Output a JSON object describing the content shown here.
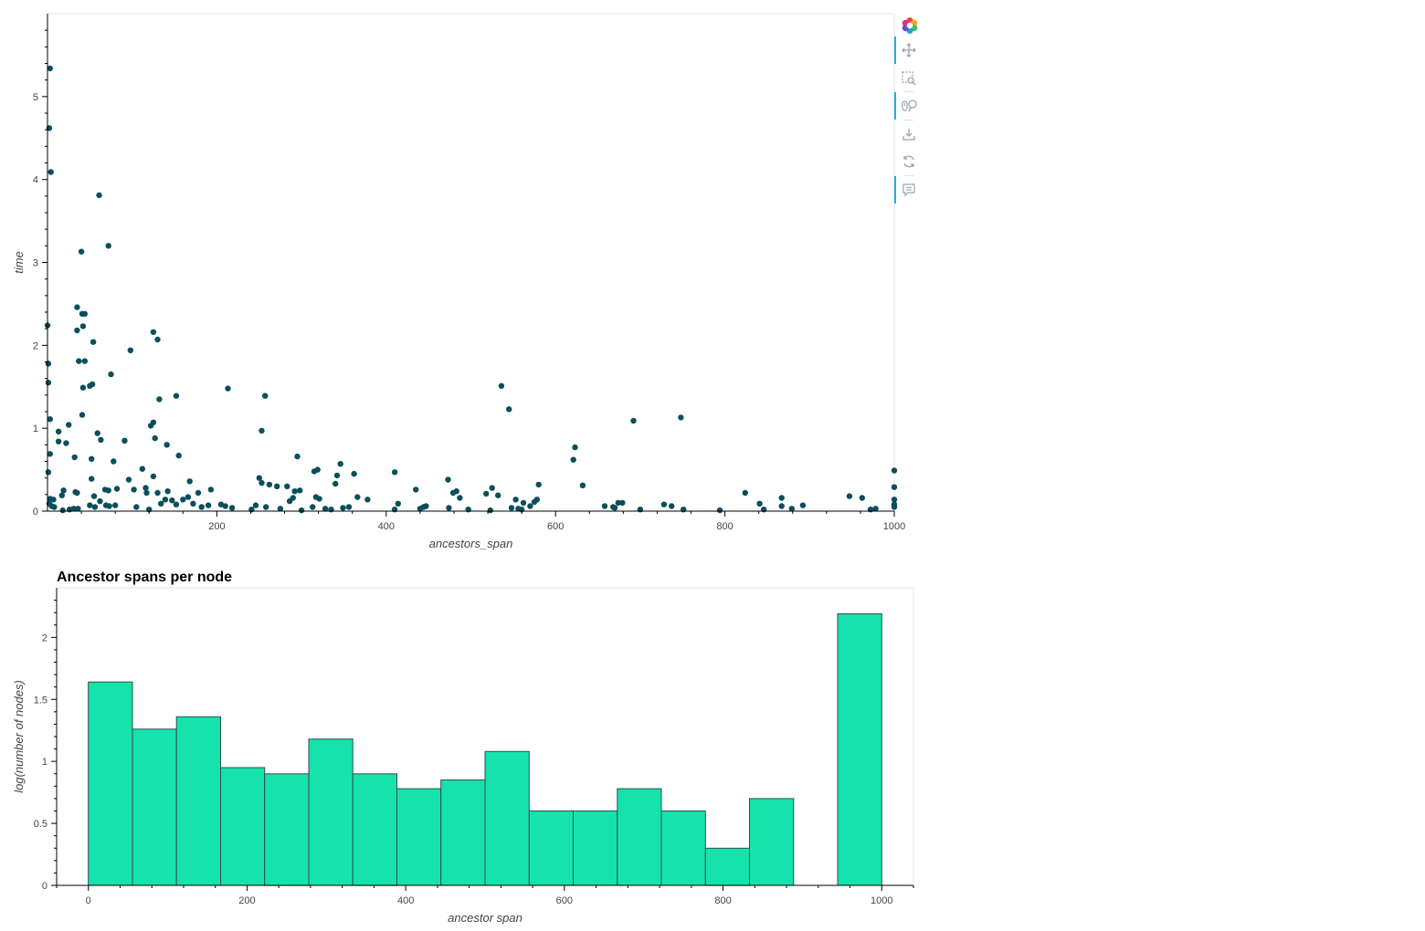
{
  "toolbar": {
    "tools": [
      {
        "icon": "bokeh-logo-icon",
        "active": false
      },
      {
        "icon": "pan-icon",
        "active": true
      },
      {
        "icon": "box-zoom-icon",
        "active": false
      },
      {
        "icon": "wheel-zoom-icon",
        "active": true
      },
      {
        "icon": "save-icon",
        "active": false
      },
      {
        "icon": "reset-icon",
        "active": false
      },
      {
        "icon": "hover-icon",
        "active": true
      }
    ]
  },
  "chart_data": [
    {
      "type": "scatter",
      "title": "",
      "xlabel": "ancestors_span",
      "ylabel": "time",
      "xlim": [
        0,
        1000
      ],
      "ylim": [
        0,
        6
      ],
      "x_ticks": [
        200,
        400,
        600,
        800,
        1000
      ],
      "y_ticks": [
        0,
        1,
        2,
        3,
        4,
        5
      ],
      "grid": false,
      "marker_color": "#0b4f5c",
      "points": [
        [
          3,
          5.34
        ],
        [
          2,
          4.62
        ],
        [
          4,
          4.09
        ],
        [
          61,
          3.81
        ],
        [
          40,
          3.13
        ],
        [
          72,
          3.2
        ],
        [
          0,
          2.24
        ],
        [
          35,
          2.46
        ],
        [
          41,
          2.38
        ],
        [
          44,
          2.38
        ],
        [
          42,
          2.23
        ],
        [
          35,
          2.18
        ],
        [
          54,
          2.04
        ],
        [
          125,
          2.16
        ],
        [
          130,
          2.07
        ],
        [
          98,
          1.94
        ],
        [
          1,
          1.78
        ],
        [
          37,
          1.81
        ],
        [
          44,
          1.81
        ],
        [
          75,
          1.65
        ],
        [
          1,
          1.55
        ],
        [
          42,
          1.49
        ],
        [
          50,
          1.51
        ],
        [
          53,
          1.53
        ],
        [
          132,
          1.35
        ],
        [
          152,
          1.39
        ],
        [
          213,
          1.48
        ],
        [
          257,
          1.39
        ],
        [
          536,
          1.51
        ],
        [
          545,
          1.23
        ],
        [
          748,
          1.13
        ],
        [
          692,
          1.09
        ],
        [
          3,
          1.11
        ],
        [
          41,
          1.16
        ],
        [
          13,
          0.96
        ],
        [
          25,
          1.04
        ],
        [
          122,
          1.03
        ],
        [
          125,
          1.07
        ],
        [
          253,
          0.97
        ],
        [
          59,
          0.94
        ],
        [
          13,
          0.84
        ],
        [
          22,
          0.82
        ],
        [
          63,
          0.86
        ],
        [
          91,
          0.85
        ],
        [
          127,
          0.88
        ],
        [
          141,
          0.8
        ],
        [
          32,
          0.65
        ],
        [
          52,
          0.63
        ],
        [
          155,
          0.67
        ],
        [
          295,
          0.66
        ],
        [
          78,
          0.6
        ],
        [
          623,
          0.77
        ],
        [
          621,
          0.62
        ],
        [
          3,
          0.69
        ],
        [
          1,
          0.47
        ],
        [
          112,
          0.51
        ],
        [
          125,
          0.42
        ],
        [
          52,
          0.39
        ],
        [
          96,
          0.38
        ],
        [
          168,
          0.36
        ],
        [
          250,
          0.4
        ],
        [
          253,
          0.34
        ],
        [
          262,
          0.32
        ],
        [
          315,
          0.48
        ],
        [
          319,
          0.5
        ],
        [
          342,
          0.43
        ],
        [
          346,
          0.57
        ],
        [
          362,
          0.45
        ],
        [
          410,
          0.47
        ],
        [
          473,
          0.38
        ],
        [
          525,
          0.28
        ],
        [
          580,
          0.32
        ],
        [
          632,
          0.31
        ],
        [
          340,
          0.33
        ],
        [
          3,
          0.15
        ],
        [
          7,
          0.14
        ],
        [
          17,
          0.19
        ],
        [
          19,
          0.25
        ],
        [
          33,
          0.23
        ],
        [
          35,
          0.22
        ],
        [
          55,
          0.18
        ],
        [
          68,
          0.26
        ],
        [
          72,
          0.25
        ],
        [
          82,
          0.27
        ],
        [
          102,
          0.26
        ],
        [
          116,
          0.28
        ],
        [
          117,
          0.22
        ],
        [
          130,
          0.22
        ],
        [
          142,
          0.24
        ],
        [
          178,
          0.22
        ],
        [
          193,
          0.26
        ],
        [
          271,
          0.3
        ],
        [
          283,
          0.3
        ],
        [
          292,
          0.24
        ],
        [
          298,
          0.25
        ],
        [
          435,
          0.26
        ],
        [
          479,
          0.22
        ],
        [
          483,
          0.24
        ],
        [
          518,
          0.21
        ],
        [
          532,
          0.19
        ],
        [
          824,
          0.22
        ],
        [
          947,
          0.18
        ],
        [
          962,
          0.16
        ],
        [
          867,
          0.16
        ],
        [
          366,
          0.17
        ],
        [
          378,
          0.14
        ],
        [
          317,
          0.17
        ],
        [
          321,
          0.15
        ],
        [
          290,
          0.16
        ],
        [
          286,
          0.12
        ],
        [
          487,
          0.16
        ],
        [
          553,
          0.14
        ],
        [
          562,
          0.1
        ],
        [
          575,
          0.11
        ],
        [
          578,
          0.14
        ],
        [
          674,
          0.1
        ],
        [
          679,
          0.1
        ],
        [
          2,
          0.09
        ],
        [
          5,
          0.06
        ],
        [
          8,
          0.05
        ],
        [
          18,
          0.01
        ],
        [
          26,
          0.02
        ],
        [
          31,
          0.03
        ],
        [
          36,
          0.03
        ],
        [
          50,
          0.07
        ],
        [
          56,
          0.05
        ],
        [
          62,
          0.12
        ],
        [
          69,
          0.07
        ],
        [
          73,
          0.06
        ],
        [
          80,
          0.07
        ],
        [
          105,
          0.05
        ],
        [
          120,
          0.02
        ],
        [
          134,
          0.09
        ],
        [
          139,
          0.14
        ],
        [
          147,
          0.13
        ],
        [
          152,
          0.08
        ],
        [
          160,
          0.14
        ],
        [
          166,
          0.17
        ],
        [
          172,
          0.09
        ],
        [
          182,
          0.05
        ],
        [
          190,
          0.07
        ],
        [
          205,
          0.08
        ],
        [
          210,
          0.06
        ],
        [
          218,
          0.04
        ],
        [
          241,
          0.02
        ],
        [
          246,
          0.07
        ],
        [
          258,
          0.05
        ],
        [
          275,
          0.03
        ],
        [
          300,
          0.01
        ],
        [
          313,
          0.05
        ],
        [
          328,
          0.03
        ],
        [
          335,
          0.02
        ],
        [
          349,
          0.04
        ],
        [
          356,
          0.05
        ],
        [
          410,
          0.02
        ],
        [
          414,
          0.09
        ],
        [
          440,
          0.03
        ],
        [
          444,
          0.05
        ],
        [
          447,
          0.06
        ],
        [
          474,
          0.04
        ],
        [
          497,
          0.02
        ],
        [
          523,
          0.01
        ],
        [
          548,
          0.04
        ],
        [
          556,
          0.03
        ],
        [
          560,
          0.02
        ],
        [
          570,
          0.06
        ],
        [
          658,
          0.06
        ],
        [
          668,
          0.05
        ],
        [
          670,
          0.04
        ],
        [
          700,
          0.02
        ],
        [
          728,
          0.08
        ],
        [
          737,
          0.06
        ],
        [
          751,
          0.02
        ],
        [
          794,
          0.01
        ],
        [
          841,
          0.09
        ],
        [
          846,
          0.02
        ],
        [
          867,
          0.06
        ],
        [
          879,
          0.03
        ],
        [
          892,
          0.07
        ],
        [
          972,
          0.02
        ],
        [
          978,
          0.03
        ],
        [
          1000,
          0.49
        ],
        [
          1000,
          0.29
        ],
        [
          1000,
          0.14
        ],
        [
          1000,
          0.08
        ],
        [
          1000,
          0.05
        ]
      ]
    },
    {
      "type": "bar",
      "title": "Ancestor spans per node",
      "xlabel": "ancestor span",
      "ylabel": "log(number of nodes)",
      "xlim": [
        -40,
        1040
      ],
      "ylim": [
        0,
        2.4
      ],
      "x_ticks": [
        0,
        200,
        400,
        600,
        800,
        1000
      ],
      "y_ticks": [
        0,
        0.5,
        1,
        1.5,
        2
      ],
      "y_tick_labels": [
        "0",
        "0.5",
        "1",
        "1.5",
        "2"
      ],
      "grid": false,
      "fill_color": "#16e3ab",
      "edge_color": "#2f4f4f",
      "bins": [
        {
          "left": 0,
          "right": 55.6,
          "value": 1.64
        },
        {
          "left": 55.6,
          "right": 111.1,
          "value": 1.26
        },
        {
          "left": 111.1,
          "right": 166.7,
          "value": 1.36
        },
        {
          "left": 166.7,
          "right": 222.2,
          "value": 0.95
        },
        {
          "left": 222.2,
          "right": 277.8,
          "value": 0.9
        },
        {
          "left": 277.8,
          "right": 333.3,
          "value": 1.18
        },
        {
          "left": 333.3,
          "right": 388.9,
          "value": 0.9
        },
        {
          "left": 388.9,
          "right": 444.4,
          "value": 0.78
        },
        {
          "left": 444.4,
          "right": 500,
          "value": 0.85
        },
        {
          "left": 500,
          "right": 555.6,
          "value": 1.08
        },
        {
          "left": 555.6,
          "right": 611.1,
          "value": 0.6
        },
        {
          "left": 611.1,
          "right": 666.7,
          "value": 0.6
        },
        {
          "left": 666.7,
          "right": 722.2,
          "value": 0.78
        },
        {
          "left": 722.2,
          "right": 777.8,
          "value": 0.6
        },
        {
          "left": 777.8,
          "right": 833.3,
          "value": 0.3
        },
        {
          "left": 833.3,
          "right": 888.9,
          "value": 0.7
        },
        {
          "left": 888.9,
          "right": 944.4,
          "value": 0
        },
        {
          "left": 944.4,
          "right": 1000,
          "value": 2.19
        }
      ]
    }
  ]
}
